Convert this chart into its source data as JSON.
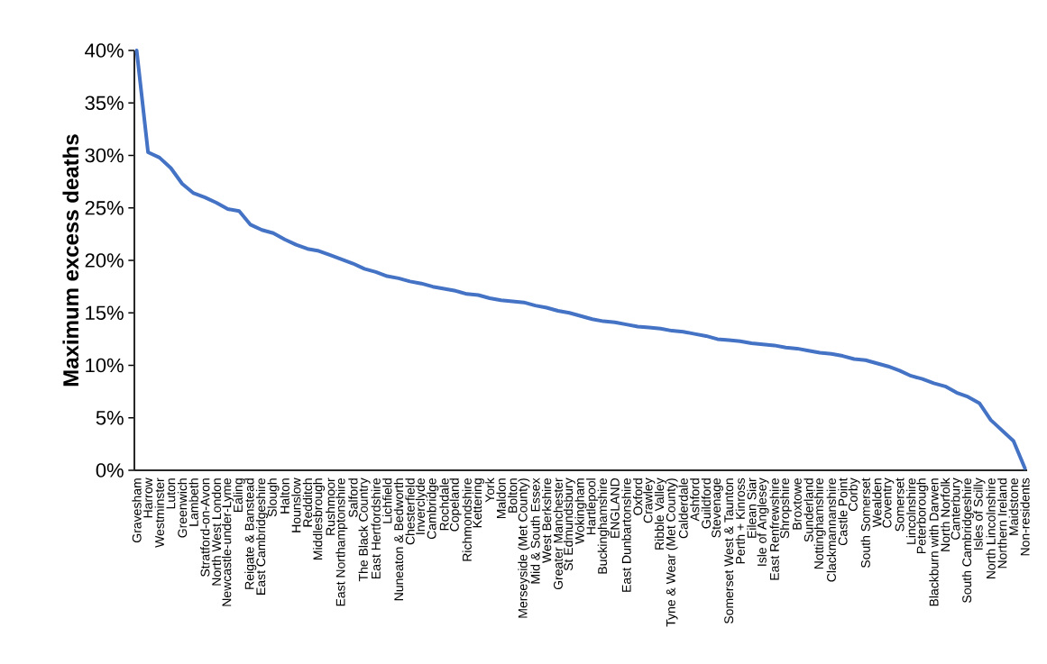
{
  "chart_data": {
    "type": "line",
    "ylabel": "Maximum excess deaths",
    "categories": [
      "Gravesham",
      "Harrow",
      "Westminster",
      "Luton",
      "Greenwich",
      "Lambeth",
      "Stratford-on-Avon",
      "North West London",
      "Newcastle-under-Lyme",
      "Ealing",
      "Reigate & Banstead",
      "East Cambridgeshire",
      "Slough",
      "Halton",
      "Hounslow",
      "Redditch",
      "Middlesbrough",
      "Rushmoor",
      "East Northamptonshire",
      "Salford",
      "The Black Country",
      "East Hertfordshire",
      "Lichfield",
      "Nuneaton & Bedworth",
      "Chesterfield",
      "Inverclyde",
      "Cambridge",
      "Rochdale",
      "Copeland",
      "Richmondshire",
      "Kettering",
      "York",
      "Maldon",
      "Bolton",
      "Merseyside (Met County)",
      "Mid & South Essex",
      "West Berkshire",
      "Greater Manchester",
      "St Edmundsbury",
      "Wokingham",
      "Hartlepool",
      "Buckinghamshire",
      "ENGLAND",
      "East Dunbartonshire",
      "Oxford",
      "Crawley",
      "Ribble Valley",
      "Tyne & Wear (Met County)",
      "Calderdale",
      "Ashford",
      "Guildford",
      "Stevenage",
      "Somerset West & Taunton",
      "Perth + Kinross",
      "Eilean Siar",
      "Isle of Anglesey",
      "East Renfrewshire",
      "Shropshire",
      "Broxtowe",
      "Sunderland",
      "Nottinghamshire",
      "Clackmannanshire",
      "Castle Point",
      "Corby",
      "South Somerset",
      "Wealden",
      "Coventry",
      "Somerset",
      "Lincolnshire",
      "Peterborough",
      "Blackburn with Darwen",
      "North Norfolk",
      "Canterbury",
      "South Cambridgeshire",
      "Isles of Scilly",
      "North Lincolnshire",
      "Northern Ireland",
      "Maidstone",
      "Non-residents"
    ],
    "series": [
      {
        "color": "#4472c4",
        "values": [
          40,
          30.3,
          29.8,
          28.8,
          27.3,
          26.4,
          26.0,
          25.5,
          24.9,
          24.7,
          23.4,
          22.9,
          22.6,
          22.0,
          21.5,
          21.1,
          20.9,
          20.5,
          20.1,
          19.7,
          19.2,
          18.9,
          18.5,
          18.3,
          18.0,
          17.8,
          17.5,
          17.3,
          17.1,
          16.8,
          16.7,
          16.4,
          16.2,
          16.1,
          16.0,
          15.7,
          15.5,
          15.2,
          15.0,
          14.7,
          14.4,
          14.2,
          14.1,
          13.9,
          13.7,
          13.6,
          13.5,
          13.3,
          13.2,
          13.0,
          12.8,
          12.5,
          12.4,
          12.3,
          12.1,
          12.0,
          11.9,
          11.7,
          11.6,
          11.4,
          11.2,
          11.1,
          10.9,
          10.6,
          10.5,
          10.2,
          9.9,
          9.5,
          9.0,
          8.7,
          8.3,
          8.0,
          7.4,
          7.0,
          6.4,
          4.8,
          3.8,
          2.8,
          0.2
        ]
      }
    ],
    "ylim": [
      0,
      40
    ],
    "yticks": [
      {
        "value": 0,
        "label": "0%"
      },
      {
        "value": 5,
        "label": "5%"
      },
      {
        "value": 10,
        "label": "10%"
      },
      {
        "value": 15,
        "label": "15%"
      },
      {
        "value": 20,
        "label": "20%"
      },
      {
        "value": 25,
        "label": "25%"
      },
      {
        "value": 30,
        "label": "30%"
      },
      {
        "value": 35,
        "label": "35%"
      },
      {
        "value": 40,
        "label": "40%"
      }
    ],
    "line_style": "solid"
  }
}
